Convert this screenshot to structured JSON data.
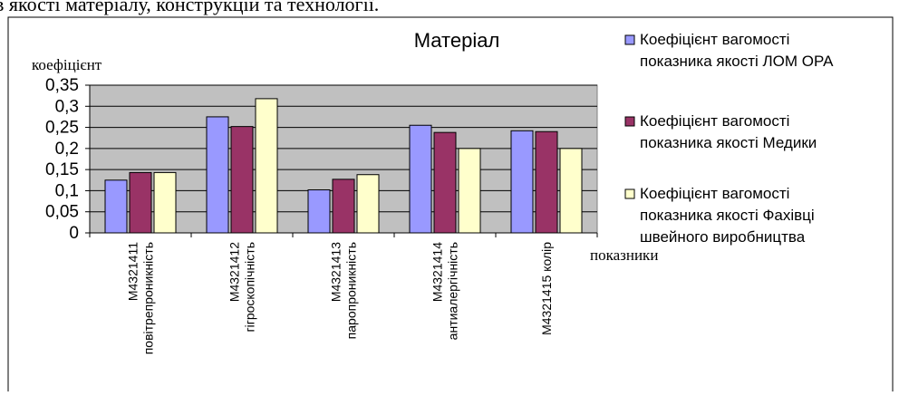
{
  "top_caption": "в якості матеріалу, конструкцій та технології.",
  "chart_data": {
    "type": "bar",
    "title": "Матеріал",
    "ylabel": "коефіцієнт",
    "xlabel": "показники",
    "ylim": [
      0,
      0.35
    ],
    "yticks": [
      0,
      0.05,
      0.1,
      0.15,
      0.2,
      0.25,
      0.3,
      0.35
    ],
    "ytick_labels": [
      "0",
      "0,05",
      "0,1",
      "0,15",
      "0,2",
      "0,25",
      "0,3",
      "0,35"
    ],
    "categories": [
      [
        "М4321411",
        "повітрепроникність"
      ],
      [
        "М4321412",
        "гігроскопічність"
      ],
      [
        "М4321413",
        "паропроникність"
      ],
      [
        "М4321414",
        "антиалергічність"
      ],
      [
        "М4321415 колір"
      ]
    ],
    "series": [
      {
        "name": "Коефіцієнт вагомості показника якості ЛОМ ОРА",
        "color": "#9999FF",
        "values": [
          0.125,
          0.275,
          0.102,
          0.255,
          0.242
        ]
      },
      {
        "name": "Коефіцієнт вагомості показника якості Медики",
        "color": "#993366",
        "values": [
          0.143,
          0.252,
          0.127,
          0.238,
          0.24
        ]
      },
      {
        "name": "Коефіцієнт вагомості показника якості Фахівці швейного виробництва",
        "color": "#FFFFCC",
        "values": [
          0.143,
          0.318,
          0.138,
          0.2,
          0.2
        ]
      }
    ],
    "legend_lines": [
      [
        "Коефіцієнт вагомості",
        "показника якості ЛОМ ОРА"
      ],
      [
        "Коефіцієнт вагомості",
        "показника якості Медики"
      ],
      [
        "Коефіцієнт вагомості",
        "показника якості Фахівці",
        "швейного виробництва"
      ]
    ],
    "plot_background": "#C0C0C0",
    "grid": true,
    "legend_position": "right"
  }
}
